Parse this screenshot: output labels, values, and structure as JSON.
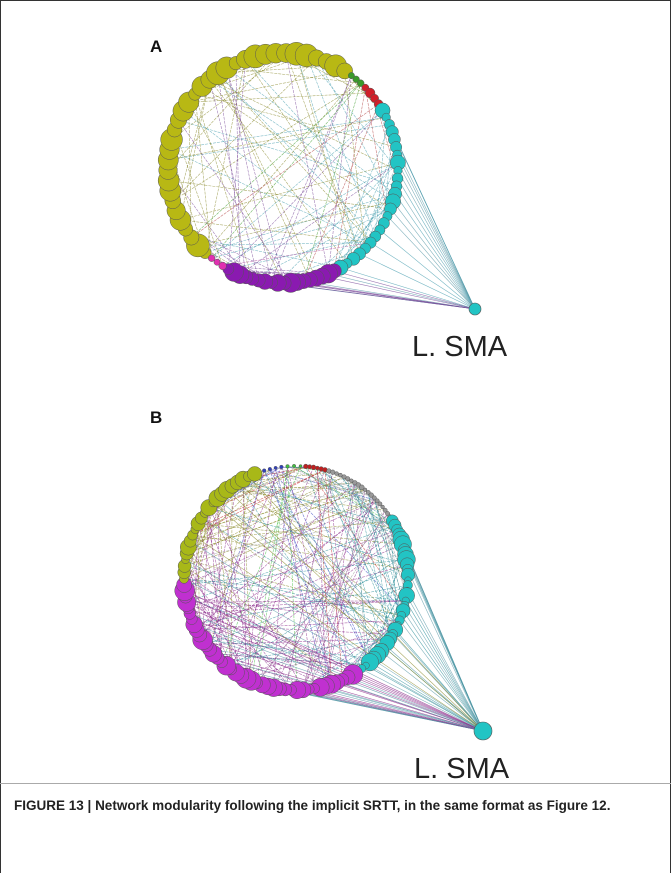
{
  "panels": [
    {
      "label": "A",
      "node_label": "L. SMA"
    },
    {
      "label": "B",
      "node_label": "L. SMA"
    }
  ],
  "caption": {
    "label": "FIGURE 13 |",
    "text": "Network modularity following the implicit SRTT, in the same format as",
    "reference": "Figure 12",
    "end": "."
  }
}
